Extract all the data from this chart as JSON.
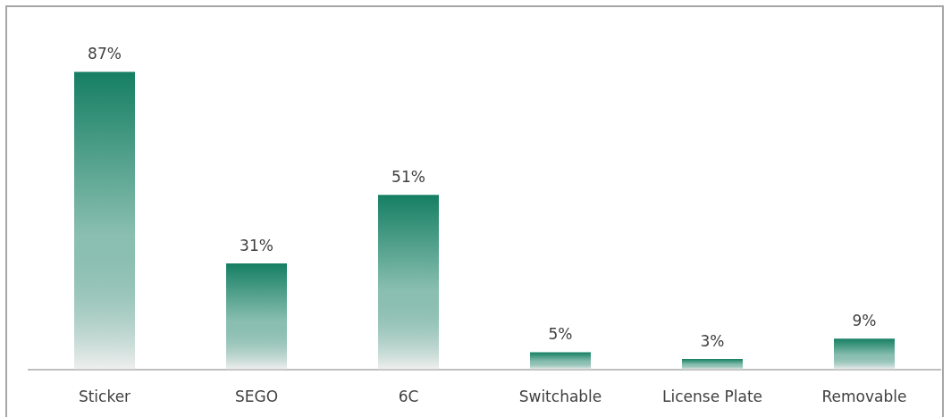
{
  "chart_data": {
    "type": "bar",
    "categories": [
      "Sticker",
      "SEGO",
      "6C",
      "Switchable",
      "License Plate",
      "Removable"
    ],
    "values": [
      87,
      31,
      51,
      5,
      3,
      9
    ],
    "value_labels": [
      "87%",
      "31%",
      "51%",
      "5%",
      "3%",
      "9%"
    ],
    "color": "#157f63"
  }
}
